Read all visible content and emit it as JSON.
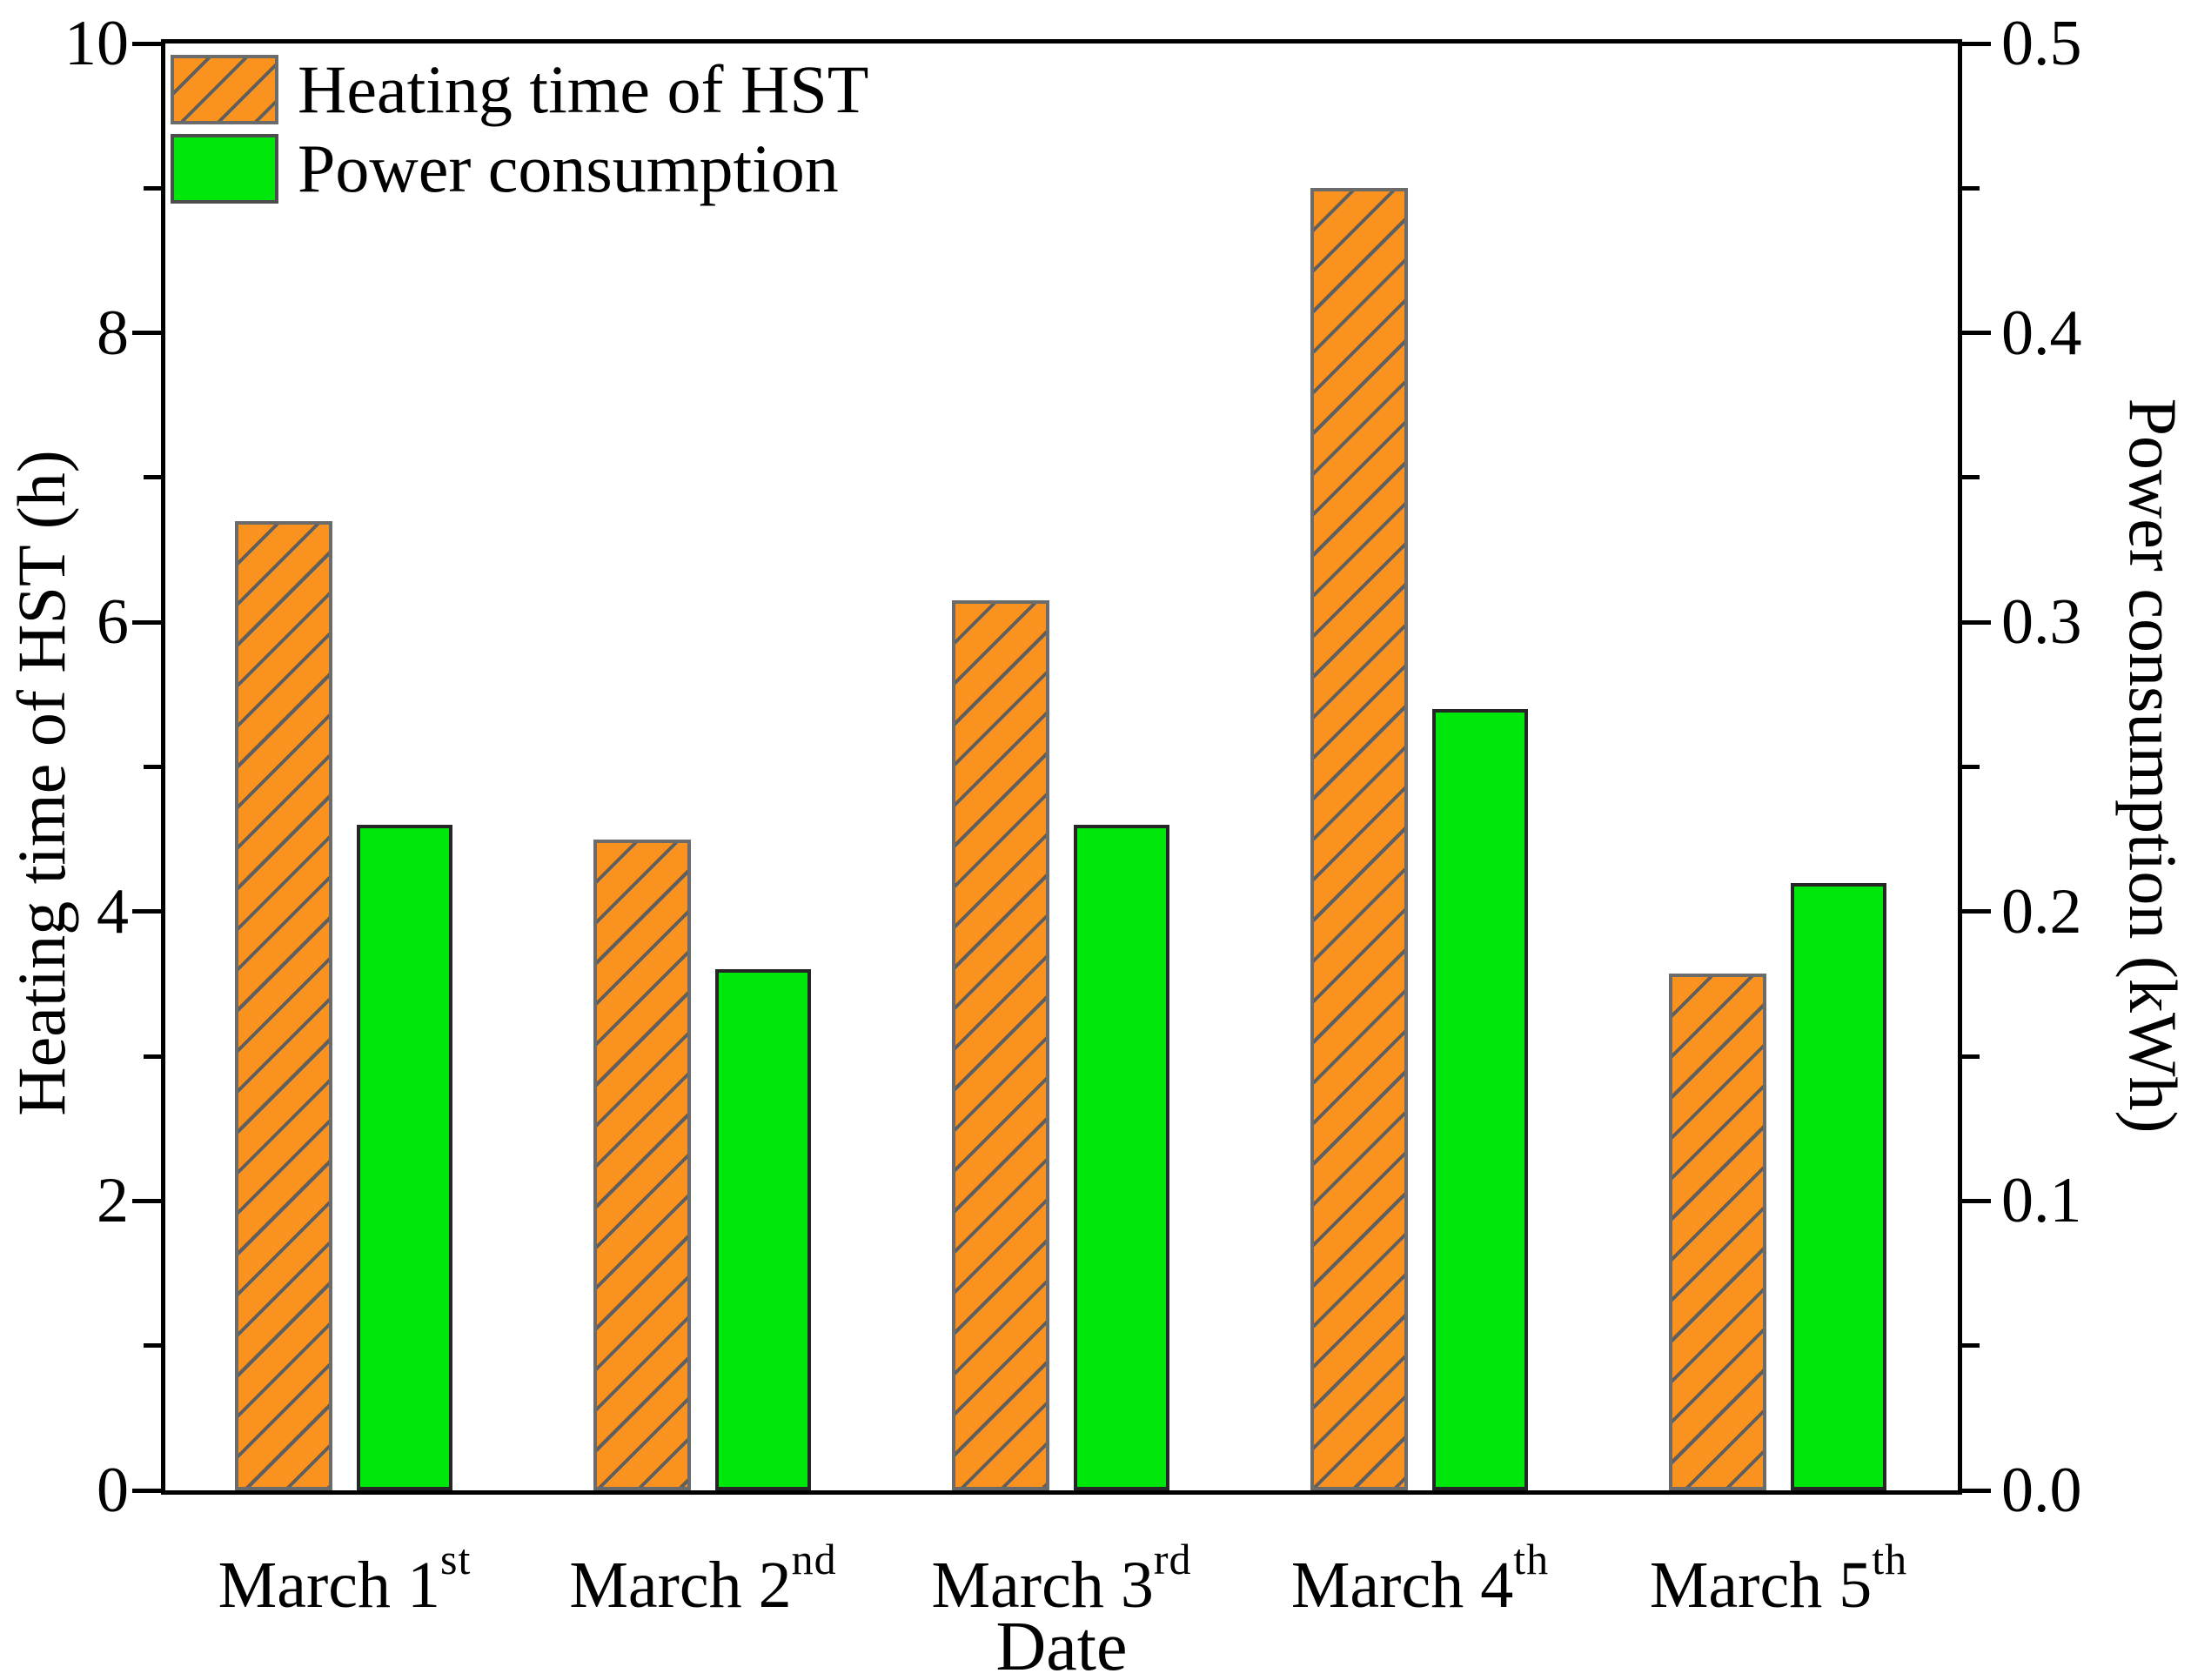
{
  "chart_data": {
    "type": "bar",
    "title": "",
    "categories": [
      "March 1st",
      "March 2nd",
      "March 3rd",
      "March 4th",
      "March 5th"
    ],
    "categories_rich": [
      {
        "base": "March 1",
        "sup": "st"
      },
      {
        "base": "March 2",
        "sup": "nd"
      },
      {
        "base": "March 3",
        "sup": "rd"
      },
      {
        "base": "March 4",
        "sup": "th"
      },
      {
        "base": "March 5",
        "sup": "th"
      }
    ],
    "series": [
      {
        "name": "Heating time of HST",
        "axis": "left",
        "unit": "h",
        "style": "orange-hatched",
        "values": [
          6.7,
          4.5,
          6.15,
          9.0,
          3.57
        ]
      },
      {
        "name": "Power consumption",
        "axis": "right",
        "unit": "kWh",
        "style": "green-solid",
        "values": [
          0.23,
          0.18,
          0.23,
          0.27,
          0.21
        ]
      }
    ],
    "xlabel": "Date",
    "ylabel_left": "Heating time of HST (h)",
    "ylabel_right": "Power consumption (kWh)",
    "ylim_left": [
      0,
      10
    ],
    "ylim_right": [
      0.0,
      0.5
    ],
    "left_major_ticks": [
      0,
      2,
      4,
      6,
      8,
      10
    ],
    "left_minor_ticks": [
      1,
      3,
      5,
      7,
      9
    ],
    "left_tick_labels": [
      "0",
      "2",
      "4",
      "6",
      "8",
      "10"
    ],
    "right_major_ticks": [
      0.0,
      0.1,
      0.2,
      0.3,
      0.4,
      0.5
    ],
    "right_minor_ticks": [
      0.05,
      0.15,
      0.25,
      0.35,
      0.45
    ],
    "right_tick_labels": [
      "0.0",
      "0.1",
      "0.2",
      "0.3",
      "0.4",
      "0.5"
    ],
    "grid": false,
    "legend_position": "top-left-inside",
    "colors": {
      "heating_fill": "#f9921e",
      "heating_hatch": "#5f5f5f",
      "heating_border": "#6b6b6b",
      "power_fill": "#00e70c",
      "power_border": "#262626",
      "axis": "#000000"
    }
  }
}
